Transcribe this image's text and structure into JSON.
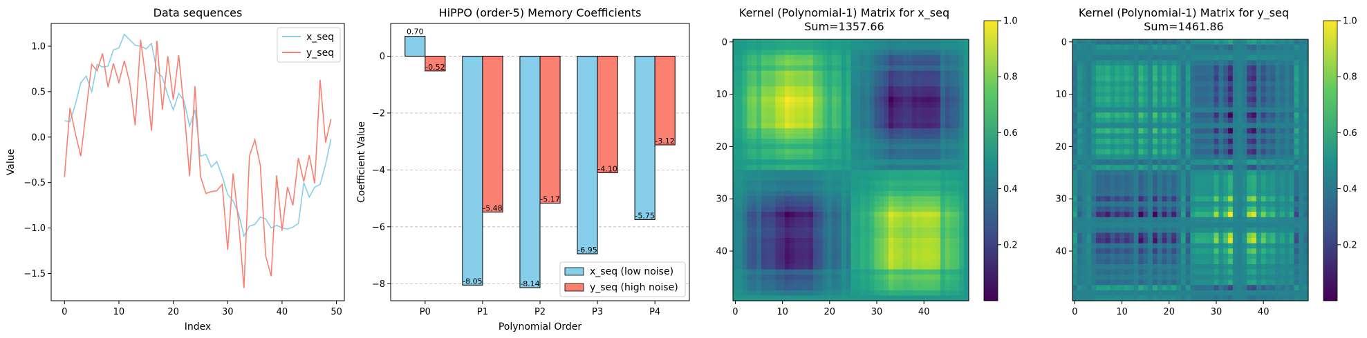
{
  "chart_data": [
    {
      "type": "line",
      "title": "Data sequences",
      "xlabel": "Index",
      "ylabel": "Value",
      "xlim": [
        -2.45,
        51.45
      ],
      "ylim": [
        -1.8,
        1.25
      ],
      "xticks": [
        0,
        10,
        20,
        30,
        40,
        50
      ],
      "yticks": [
        -1.5,
        -1.0,
        -0.5,
        0.0,
        0.5,
        1.0
      ],
      "xtick_labels": [
        "0",
        "10",
        "20",
        "30",
        "40",
        "50"
      ],
      "ytick_labels": [
        "−1.5",
        "−1.0",
        "−0.5",
        "0.0",
        "0.5",
        "1.0"
      ],
      "legend_position": "top-right",
      "series": [
        {
          "name": "x_seq",
          "color": "#87CEEB",
          "values": [
            0.18,
            0.17,
            0.36,
            0.6,
            0.67,
            0.5,
            0.8,
            0.77,
            0.78,
            0.96,
            0.98,
            1.13,
            1.07,
            1.01,
            1.0,
            0.97,
            1.03,
            0.72,
            0.66,
            0.46,
            0.3,
            0.48,
            0.4,
            0.12,
            0.3,
            -0.21,
            -0.19,
            -0.33,
            -0.27,
            -0.43,
            -0.63,
            -0.7,
            -0.84,
            -1.09,
            -0.98,
            -0.96,
            -0.88,
            -0.9,
            -1.0,
            -0.97,
            -1.0,
            -1.01,
            -0.99,
            -0.95,
            -0.5,
            -0.66,
            -0.55,
            -0.52,
            -0.3,
            -0.02
          ]
        },
        {
          "name": "y_seq",
          "color": "#FA8072",
          "values": [
            -0.44,
            0.32,
            0.04,
            -0.21,
            0.3,
            0.8,
            0.73,
            0.92,
            0.55,
            0.81,
            0.6,
            0.84,
            0.6,
            0.13,
            1.07,
            0.62,
            0.07,
            1.06,
            0.3,
            0.89,
            0.41,
            0.9,
            0.3,
            -0.43,
            0.56,
            -0.43,
            -0.62,
            -0.6,
            -0.59,
            -0.52,
            -1.24,
            -0.4,
            -0.93,
            -1.66,
            -0.21,
            -0.03,
            -0.31,
            -1.31,
            -1.53,
            -0.42,
            -1.03,
            -0.55,
            -0.75,
            -0.23,
            -0.49,
            -0.2,
            -0.51,
            0.63,
            -0.06,
            0.2
          ]
        }
      ]
    },
    {
      "type": "bar",
      "title": "HiPPO (order-5) Memory Coefficients",
      "xlabel": "Polynomial Order",
      "ylabel": "Coefficient Value",
      "categories": [
        "P0",
        "P1",
        "P2",
        "P3",
        "P4"
      ],
      "ylim": [
        -8.6,
        1.15
      ],
      "yticks": [
        0,
        -2,
        -4,
        -6,
        -8
      ],
      "ytick_labels": [
        "0",
        "−2",
        "−4",
        "−6",
        "−8"
      ],
      "grid": "y-dashed",
      "legend_position": "bottom-right",
      "series": [
        {
          "name": "x_seq (low noise)",
          "color": "#87CEEB",
          "values": [
            0.7,
            -8.05,
            -8.14,
            -6.95,
            -5.75
          ],
          "labels": [
            "0.70",
            "-8.05",
            "-8.14",
            "-6.95",
            "-5.75"
          ]
        },
        {
          "name": "y_seq (high noise)",
          "color": "#FA8072",
          "values": [
            -0.52,
            -5.48,
            -5.17,
            -4.1,
            -3.12
          ],
          "labels": [
            "-0.52",
            "-5.48",
            "-5.17",
            "-4.10",
            "-3.12"
          ]
        }
      ]
    },
    {
      "type": "heatmap",
      "title": "Kernel (Polynomial-1) Matrix for x_seq",
      "subtitle": "Sum=1357.66",
      "source": "x_seq",
      "size": 50,
      "xticks": [
        0,
        10,
        20,
        30,
        40
      ],
      "yticks": [
        0,
        10,
        20,
        30,
        40
      ],
      "colormap": "viridis",
      "colorbar_range": [
        0.0,
        1.0
      ],
      "colorbar_ticks": [
        "0.2",
        "0.4",
        "0.6",
        "0.8",
        "1.0"
      ]
    },
    {
      "type": "heatmap",
      "title": "Kernel (Polynomial-1) Matrix for y_seq",
      "subtitle": "Sum=1461.86",
      "source": "y_seq",
      "size": 50,
      "xticks": [
        0,
        10,
        20,
        30,
        40
      ],
      "yticks": [
        0,
        10,
        20,
        30,
        40
      ],
      "colormap": "viridis",
      "colorbar_range": [
        0.0,
        1.0
      ],
      "colorbar_ticks": [
        "0.2",
        "0.4",
        "0.6",
        "0.8",
        "1.0"
      ]
    }
  ]
}
